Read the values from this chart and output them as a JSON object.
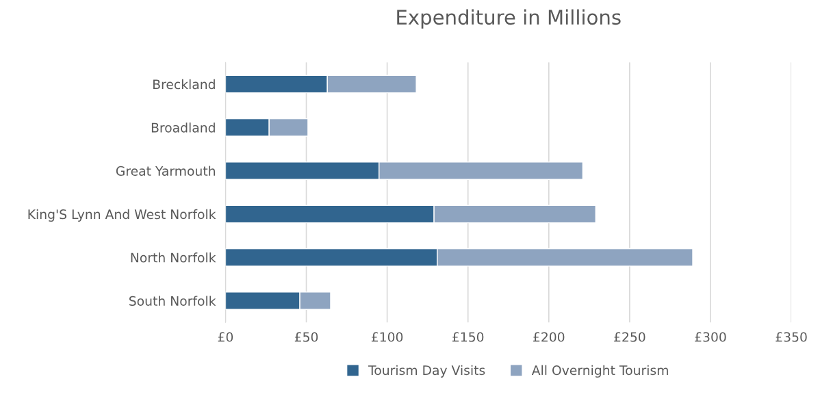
{
  "chart_data": {
    "type": "bar",
    "orientation": "horizontal",
    "stacked": true,
    "title": "Expenditure in Millions",
    "categories": [
      "Breckland",
      "Broadland",
      "Great Yarmouth",
      "King'S Lynn And West Norfolk",
      "North Norfolk",
      "South Norfolk"
    ],
    "series": [
      {
        "name": "Tourism Day Visits",
        "color": "#31658f",
        "values": [
          63,
          27,
          95,
          129,
          131,
          46
        ]
      },
      {
        "name": "All Overnight Tourism",
        "color": "#8ea4c0",
        "values": [
          55,
          24,
          126,
          100,
          158,
          19
        ]
      }
    ],
    "xlim": [
      0,
      350
    ],
    "xticks": [
      {
        "value": 0,
        "label": "£0"
      },
      {
        "value": 50,
        "label": "£50"
      },
      {
        "value": 100,
        "label": "£100"
      },
      {
        "value": 150,
        "label": "£150"
      },
      {
        "value": 200,
        "label": "£200"
      },
      {
        "value": 250,
        "label": "£250"
      },
      {
        "value": 300,
        "label": "£300"
      },
      {
        "value": 350,
        "label": "£350"
      }
    ],
    "grid": "x",
    "legend": "bottom"
  }
}
